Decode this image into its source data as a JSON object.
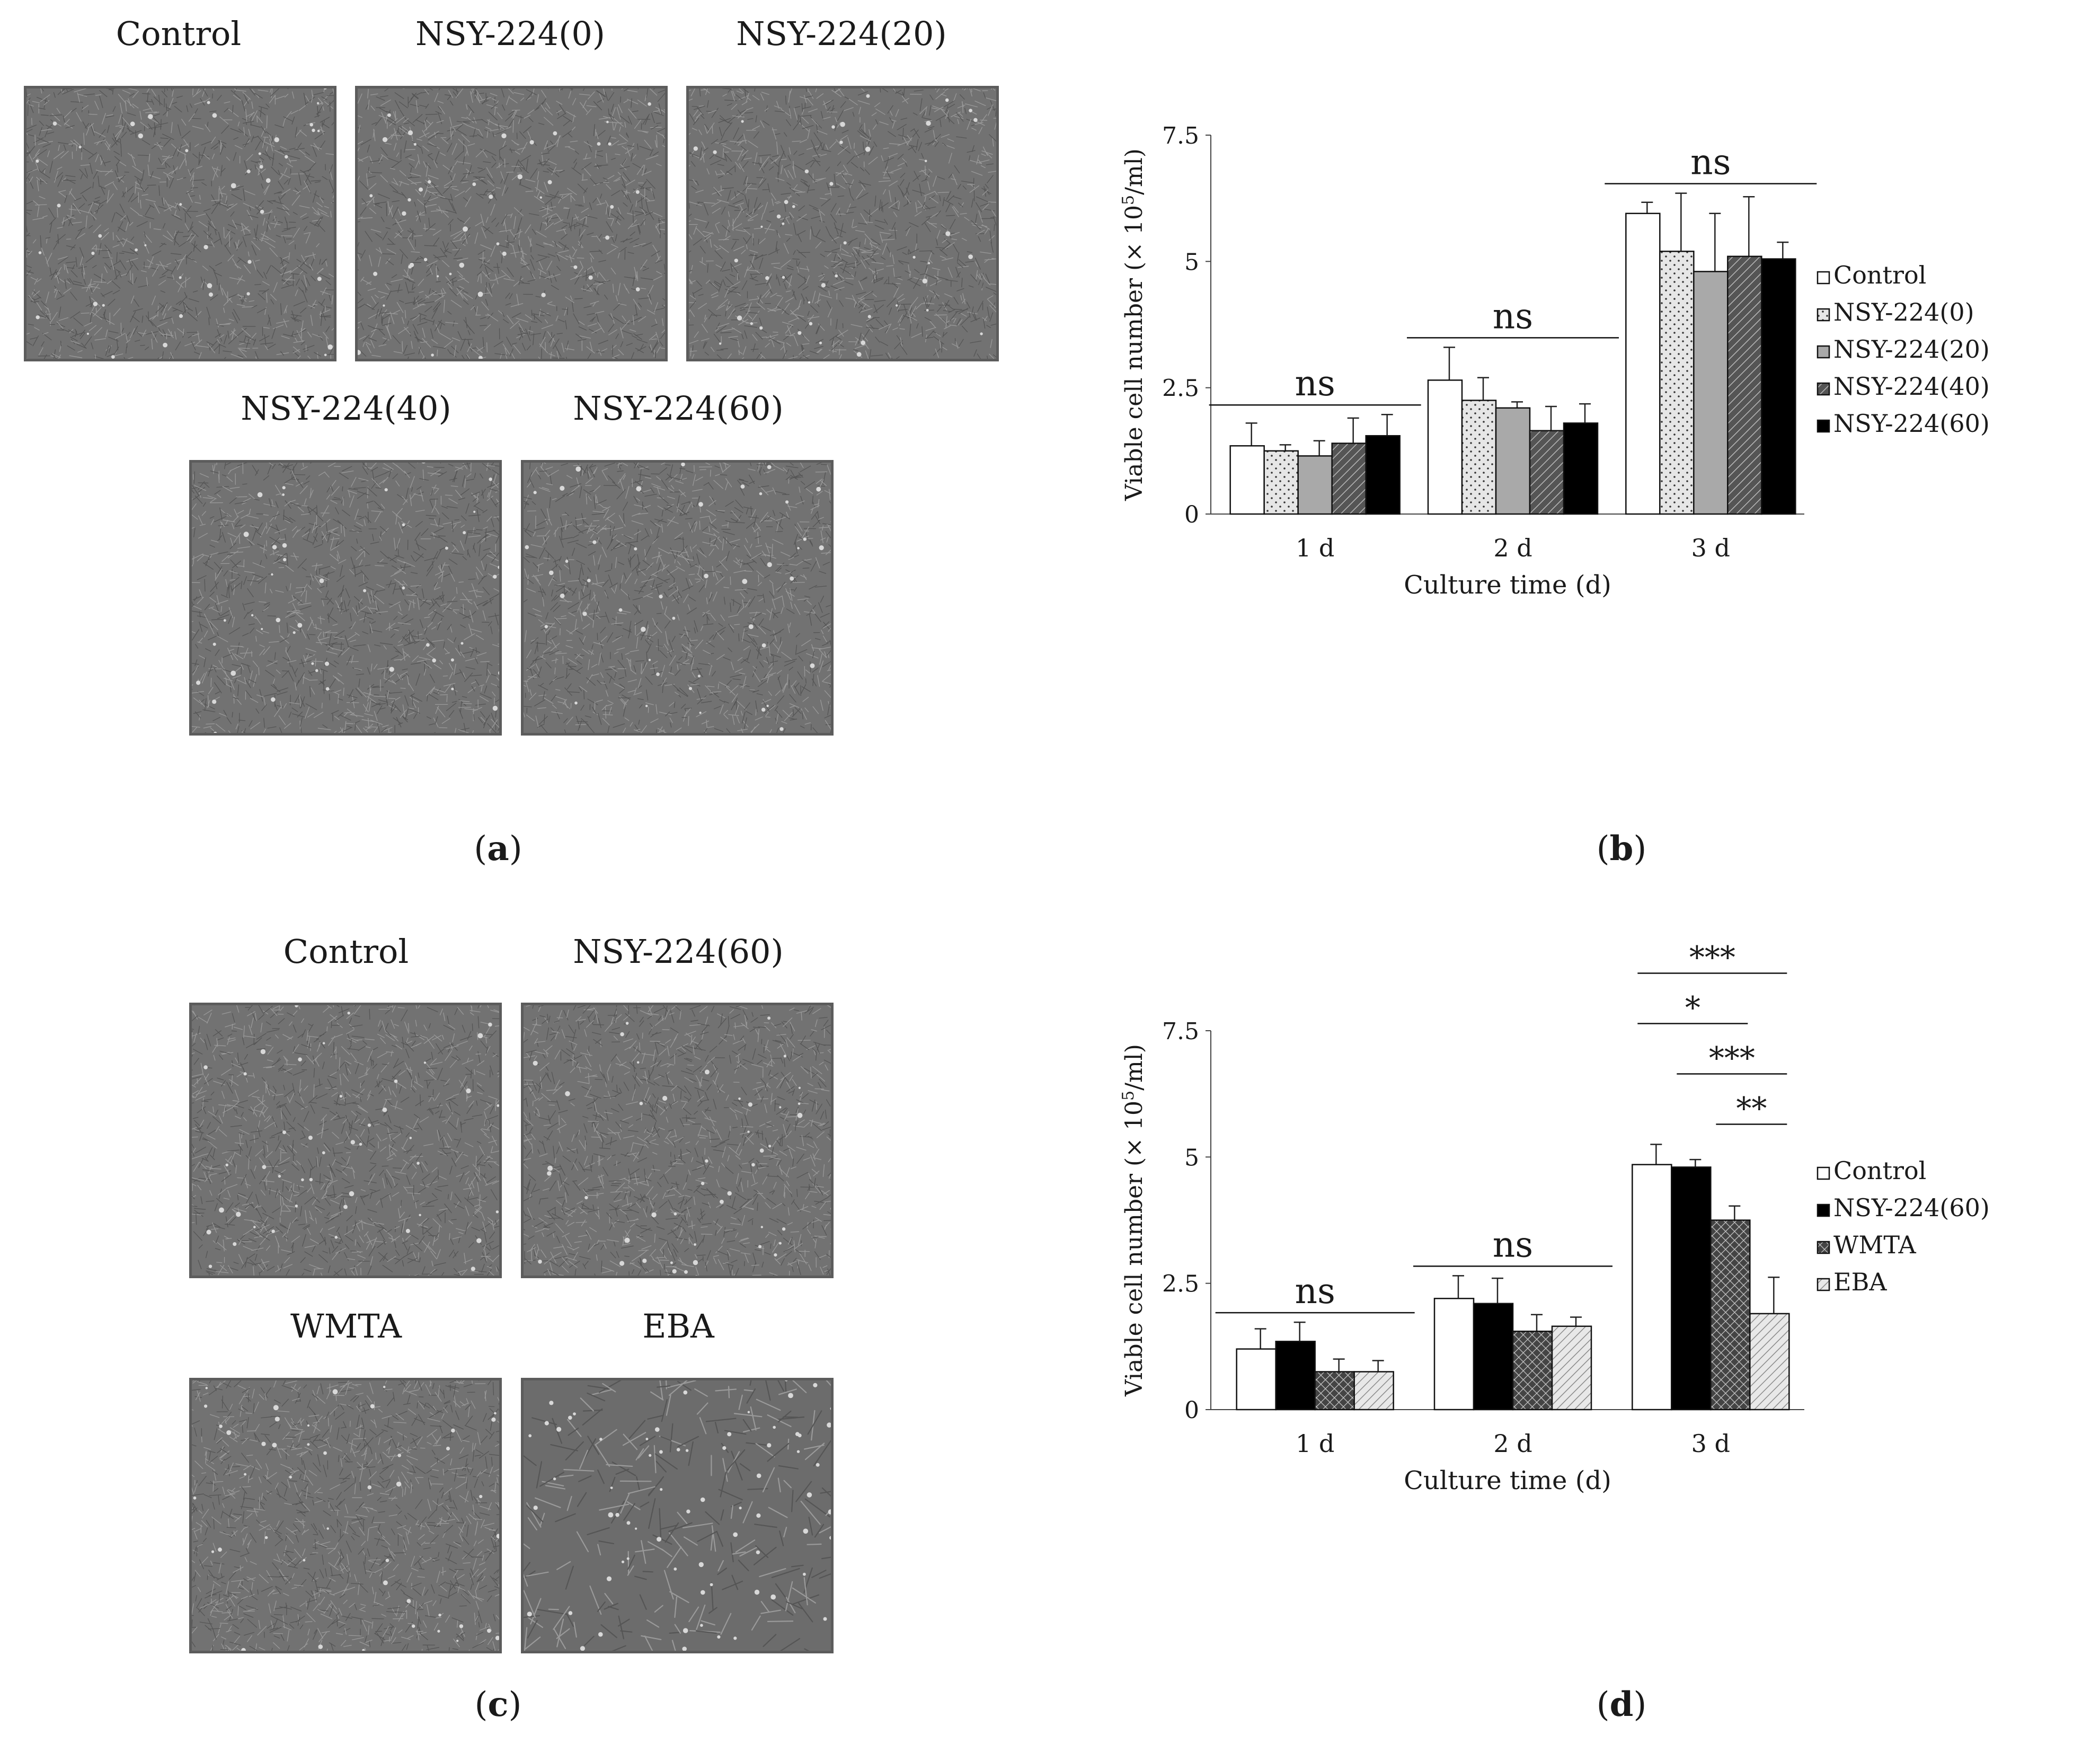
{
  "panel_labels": {
    "a": "a",
    "b": "b",
    "c": "c",
    "d": "d"
  },
  "micrographs_a": [
    "Control",
    "NSY-224(0)",
    "NSY-224(20)",
    "NSY-224(40)",
    "NSY-224(60)"
  ],
  "micrographs_c": [
    "Control",
    "NSY-224(60)",
    "WMTA",
    "EBA"
  ],
  "chart_data": [
    {
      "type": "bar",
      "title": "",
      "xlabel": "Culture time (d)",
      "ylabel": "Viable cell number",
      "ylabel_unit_prefix": "(× 10",
      "ylabel_unit_exp": "5",
      "ylabel_unit_suffix": "/ml)",
      "ylim": [
        0,
        7.5
      ],
      "yticks": [
        "0",
        "2.5",
        "5",
        "7.5"
      ],
      "categories": [
        "1 d",
        "2 d",
        "3 d"
      ],
      "legend_position": "right",
      "series": [
        {
          "name": "Control",
          "pattern": "white",
          "values": [
            1.35,
            2.65,
            5.95
          ],
          "errors": [
            0.45,
            0.65,
            0.22
          ]
        },
        {
          "name": "NSY-224(0)",
          "pattern": "dots",
          "values": [
            1.25,
            2.25,
            5.2
          ],
          "errors": [
            0.12,
            0.45,
            1.15
          ]
        },
        {
          "name": "NSY-224(20)",
          "pattern": "gray",
          "values": [
            1.15,
            2.1,
            4.8
          ],
          "errors": [
            0.3,
            0.12,
            1.15
          ]
        },
        {
          "name": "NSY-224(40)",
          "pattern": "hatch-dark",
          "values": [
            1.4,
            1.65,
            5.1
          ],
          "errors": [
            0.5,
            0.48,
            1.18
          ]
        },
        {
          "name": "NSY-224(60)",
          "pattern": "black",
          "values": [
            1.55,
            1.8,
            5.05
          ],
          "errors": [
            0.42,
            0.38,
            0.33
          ]
        }
      ],
      "annotations": [
        {
          "group": 0,
          "text": "ns"
        },
        {
          "group": 1,
          "text": "ns"
        },
        {
          "group": 2,
          "text": "ns"
        }
      ]
    },
    {
      "type": "bar",
      "title": "",
      "xlabel": "Culture time (d)",
      "ylabel": "Viable cell number",
      "ylabel_unit_prefix": "(× 10",
      "ylabel_unit_exp": "5",
      "ylabel_unit_suffix": "/ml)",
      "ylim": [
        0,
        7.5
      ],
      "yticks": [
        "0",
        "2.5",
        "5",
        "7.5"
      ],
      "categories": [
        "1 d",
        "2 d",
        "3 d"
      ],
      "legend_position": "right",
      "series": [
        {
          "name": "Control",
          "pattern": "white",
          "values": [
            1.2,
            2.2,
            4.85
          ],
          "errors": [
            0.4,
            0.45,
            0.4
          ]
        },
        {
          "name": "NSY-224(60)",
          "pattern": "black",
          "values": [
            1.35,
            2.1,
            4.8
          ],
          "errors": [
            0.38,
            0.5,
            0.15
          ]
        },
        {
          "name": "WMTA",
          "pattern": "crosshatch",
          "values": [
            0.75,
            1.55,
            3.75
          ],
          "errors": [
            0.25,
            0.33,
            0.28
          ]
        },
        {
          "name": "EBA",
          "pattern": "hatch-light",
          "values": [
            0.75,
            1.65,
            1.9
          ],
          "errors": [
            0.22,
            0.18,
            0.72
          ]
        }
      ],
      "annotations": [
        {
          "group": 0,
          "text": "ns"
        },
        {
          "group": 1,
          "text": "ns"
        },
        {
          "group": 2,
          "from": 0,
          "to": 3,
          "text": "***"
        },
        {
          "group": 2,
          "from": 0,
          "to": 2,
          "text": "*"
        },
        {
          "group": 2,
          "from": 1,
          "to": 3,
          "text": "***"
        },
        {
          "group": 2,
          "from": 2,
          "to": 3,
          "text": "**"
        }
      ]
    }
  ]
}
